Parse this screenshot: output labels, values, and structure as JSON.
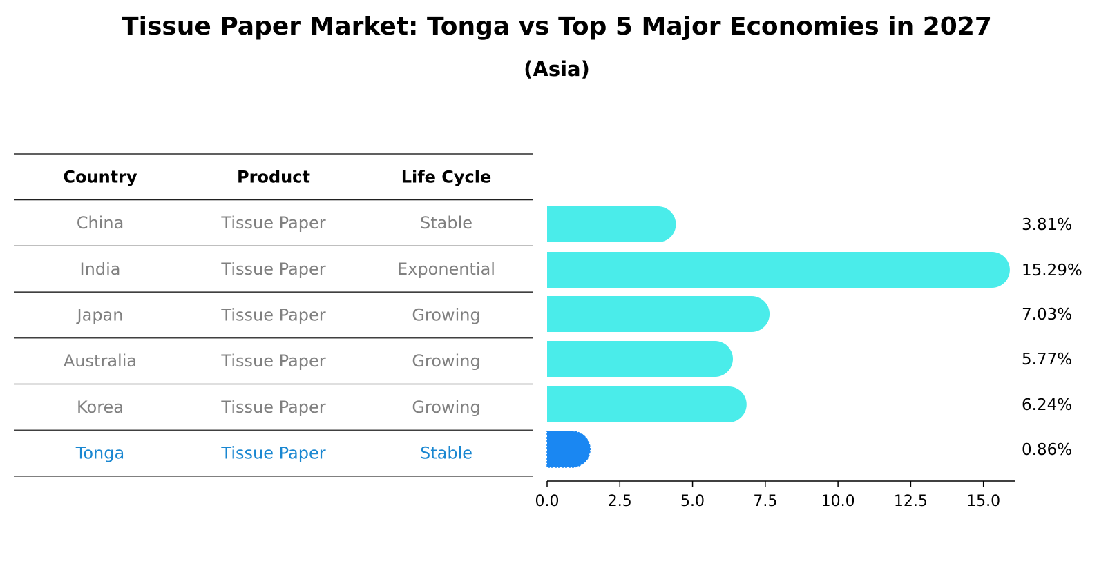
{
  "title": "Tissue Paper Market: Tonga vs Top 5 Major Economies in 2027",
  "subtitle": "(Asia)",
  "table": {
    "headers": [
      "Country",
      "Product",
      "Life Cycle"
    ],
    "rows": [
      {
        "country": "China",
        "product": "Tissue Paper",
        "life_cycle": "Stable",
        "highlight": false
      },
      {
        "country": "India",
        "product": "Tissue Paper",
        "life_cycle": "Exponential",
        "highlight": false
      },
      {
        "country": "Japan",
        "product": "Tissue Paper",
        "life_cycle": "Growing",
        "highlight": false
      },
      {
        "country": "Australia",
        "product": "Tissue Paper",
        "life_cycle": "Growing",
        "highlight": false
      },
      {
        "country": "Korea",
        "product": "Tissue Paper",
        "life_cycle": "Growing",
        "highlight": false
      },
      {
        "country": "Tonga",
        "product": "Tissue Paper",
        "life_cycle": "Stable",
        "highlight": true
      }
    ]
  },
  "colors": {
    "bar": "#4aecea",
    "highlight_bar": "#1a87f2",
    "highlight_text": "#1a87d1",
    "muted_text": "#808080",
    "rule": "#000000"
  },
  "chart_data": {
    "type": "bar",
    "orientation": "horizontal",
    "categories": [
      "China",
      "India",
      "Japan",
      "Australia",
      "Korea",
      "Tonga"
    ],
    "values": [
      3.81,
      15.29,
      7.03,
      5.77,
      6.24,
      0.86
    ],
    "value_labels": [
      "3.81%",
      "15.29%",
      "7.03%",
      "5.77%",
      "6.24%",
      "0.86%"
    ],
    "highlight_category": "Tonga",
    "xlim": [
      0,
      16.1
    ],
    "xticks": [
      0.0,
      2.5,
      5.0,
      7.5,
      10.0,
      12.5,
      15.0
    ],
    "xtick_labels": [
      "0.0",
      "2.5",
      "5.0",
      "7.5",
      "10.0",
      "12.5",
      "15.0"
    ],
    "xlabel": "",
    "ylabel": "",
    "grid": false
  }
}
